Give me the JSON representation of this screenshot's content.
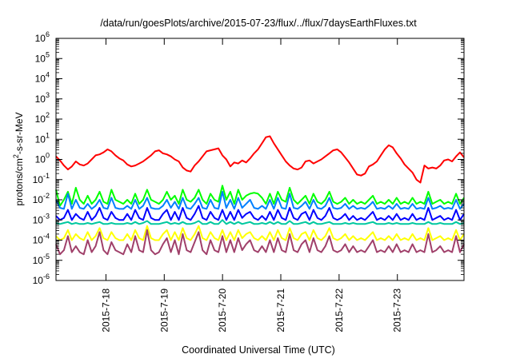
{
  "chart_data": {
    "type": "line",
    "title": "/data/run/goesPlots/archive/2015-07-23/flux/../flux/7daysEarthFluxes.txt",
    "xlabel": "Coordinated Universal Time (UTC)",
    "ylabel_main": "protons/cm",
    "ylabel_sup": "2",
    "ylabel_rest": "-s-sr-MeV",
    "yscale": "log",
    "ylim": [
      1e-06,
      1000000.0
    ],
    "xlim": [
      0,
      7.0
    ],
    "grid": false,
    "legend": "none",
    "x_ticks": [
      {
        "x": 0.857,
        "label": "2015-7-18"
      },
      {
        "x": 1.857,
        "label": "2015-7-19"
      },
      {
        "x": 2.857,
        "label": "2015-7-20"
      },
      {
        "x": 3.857,
        "label": "2015-7-21"
      },
      {
        "x": 4.857,
        "label": "2015-7-22"
      },
      {
        "x": 5.857,
        "label": "2015-7-23"
      }
    ],
    "y_ticks": [
      {
        "exp": "-6",
        "v": -6
      },
      {
        "exp": "-5",
        "v": -5
      },
      {
        "exp": "-4",
        "v": -4
      },
      {
        "exp": "-3",
        "v": -3
      },
      {
        "exp": "-2",
        "v": -2
      },
      {
        "exp": "-1",
        "v": -1
      },
      {
        "exp": "0",
        "v": 0
      },
      {
        "exp": "1",
        "v": 1
      },
      {
        "exp": "2",
        "v": 2
      },
      {
        "exp": "3",
        "v": 3
      },
      {
        "exp": "4",
        "v": 4
      },
      {
        "exp": "5",
        "v": 5
      },
      {
        "exp": "6",
        "v": 6
      }
    ],
    "series": [
      {
        "color": "#ff0000",
        "log10_values": [
          0.15,
          -0.05,
          -0.3,
          -0.5,
          -0.35,
          -0.1,
          -0.25,
          -0.3,
          -0.2,
          0.0,
          0.2,
          0.25,
          0.35,
          0.5,
          0.4,
          0.2,
          0.05,
          -0.05,
          -0.25,
          -0.35,
          -0.3,
          -0.2,
          -0.1,
          0.05,
          0.2,
          0.4,
          0.45,
          0.3,
          0.25,
          0.15,
          0.0,
          -0.1,
          -0.4,
          -0.55,
          -0.6,
          -0.3,
          -0.1,
          0.15,
          0.4,
          0.45,
          0.5,
          0.55,
          0.2,
          0.0,
          -0.35,
          -0.15,
          -0.2,
          -0.05,
          -0.15,
          0.05,
          0.3,
          0.5,
          0.8,
          1.1,
          1.15,
          0.8,
          0.5,
          0.2,
          -0.1,
          -0.3,
          -0.45,
          -0.5,
          -0.4,
          -0.1,
          -0.05,
          -0.2,
          -0.1,
          0.0,
          0.15,
          0.3,
          0.45,
          0.5,
          0.35,
          0.1,
          -0.15,
          -0.45,
          -0.75,
          -0.8,
          -0.7,
          -0.35,
          -0.25,
          -0.1,
          0.2,
          0.5,
          0.7,
          0.6,
          0.3,
          0.05,
          -0.25,
          -0.45,
          -0.65,
          -1.0,
          -1.15,
          -0.3,
          -0.45,
          -0.4,
          -0.45,
          -0.3,
          -0.05,
          0.0,
          -0.1,
          0.15,
          0.35,
          0.1
        ]
      },
      {
        "color": "#00ff00",
        "log10_values": [
          -1.5,
          -2.3,
          -2.0,
          -1.6,
          -2.2,
          -1.4,
          -2.0,
          -2.2,
          -1.8,
          -2.2,
          -2.0,
          -1.6,
          -2.1,
          -2.2,
          -1.5,
          -2.0,
          -2.1,
          -2.2,
          -2.0,
          -2.2,
          -1.7,
          -2.2,
          -2.0,
          -1.5,
          -2.0,
          -2.1,
          -2.2,
          -2.0,
          -1.6,
          -2.0,
          -1.8,
          -2.2,
          -1.5,
          -2.0,
          -2.1,
          -1.9,
          -1.5,
          -2.0,
          -2.2,
          -1.7,
          -2.0,
          -2.1,
          -1.3,
          -2.0,
          -1.6,
          -2.2,
          -1.5,
          -2.0,
          -1.8,
          -1.7,
          -1.65,
          -1.7,
          -1.9,
          -2.2,
          -1.7,
          -2.2,
          -1.6,
          -2.0,
          -2.1,
          -1.4,
          -2.0,
          -2.2,
          -2.0,
          -1.8,
          -2.2,
          -1.7,
          -2.1,
          -2.2,
          -2.0,
          -1.6,
          -2.1,
          -2.2,
          -2.1,
          -1.9,
          -2.2,
          -2.0,
          -2.2,
          -2.1,
          -2.2,
          -2.0,
          -1.8,
          -2.2,
          -2.1,
          -2.2,
          -2.0,
          -2.2,
          -1.9,
          -2.2,
          -2.1,
          -2.2,
          -1.9,
          -2.2,
          -2.1,
          -2.2,
          -1.6,
          -2.2,
          -2.1,
          -2.0,
          -2.2,
          -2.1,
          -2.2,
          -1.7,
          -2.2,
          -1.9
        ]
      },
      {
        "color": "#0080ff",
        "log10_values": [
          -2.0,
          -2.4,
          -2.45,
          -1.7,
          -2.45,
          -2.0,
          -2.4,
          -2.45,
          -2.2,
          -2.45,
          -2.3,
          -2.0,
          -2.4,
          -2.45,
          -1.9,
          -2.4,
          -2.45,
          -2.45,
          -2.3,
          -2.45,
          -2.0,
          -2.45,
          -2.3,
          -1.9,
          -2.4,
          -2.45,
          -2.45,
          -2.3,
          -2.0,
          -2.4,
          -2.1,
          -2.45,
          -1.9,
          -2.4,
          -2.45,
          -2.2,
          -1.9,
          -2.4,
          -2.45,
          -2.0,
          -2.4,
          -2.45,
          -1.6,
          -2.4,
          -2.0,
          -2.45,
          -1.9,
          -2.4,
          -2.2,
          -2.0,
          -2.4,
          -2.45,
          -2.3,
          -2.45,
          -2.0,
          -2.45,
          -1.9,
          -2.4,
          -2.45,
          -1.7,
          -2.4,
          -2.45,
          -2.3,
          -2.1,
          -2.45,
          -2.0,
          -2.4,
          -2.45,
          -2.3,
          -1.9,
          -2.4,
          -2.45,
          -2.4,
          -2.2,
          -2.45,
          -2.3,
          -2.45,
          -2.4,
          -2.45,
          -2.3,
          -2.1,
          -2.45,
          -2.4,
          -2.45,
          -2.3,
          -2.45,
          -2.2,
          -2.45,
          -2.4,
          -2.45,
          -2.2,
          -2.45,
          -2.4,
          -2.45,
          -1.9,
          -2.45,
          -2.4,
          -2.3,
          -2.45,
          -2.4,
          -2.45,
          -2.0,
          -2.45,
          -2.2
        ]
      },
      {
        "color": "#0000ff",
        "log10_values": [
          -2.8,
          -3.0,
          -2.9,
          -2.5,
          -3.0,
          -2.7,
          -2.9,
          -3.0,
          -2.6,
          -3.0,
          -2.8,
          -2.4,
          -2.9,
          -3.0,
          -2.6,
          -2.9,
          -3.0,
          -3.0,
          -2.7,
          -3.0,
          -2.5,
          -2.9,
          -3.0,
          -2.4,
          -2.9,
          -3.0,
          -3.0,
          -2.7,
          -2.5,
          -3.0,
          -2.6,
          -3.0,
          -2.4,
          -2.9,
          -3.0,
          -2.7,
          -2.3,
          -2.9,
          -3.0,
          -2.6,
          -2.9,
          -3.0,
          -2.5,
          -3.0,
          -2.6,
          -3.0,
          -2.5,
          -2.9,
          -2.7,
          -2.6,
          -2.9,
          -3.0,
          -2.8,
          -3.0,
          -2.6,
          -3.0,
          -2.5,
          -2.9,
          -3.0,
          -2.4,
          -2.9,
          -3.0,
          -2.7,
          -2.6,
          -3.0,
          -2.5,
          -2.9,
          -3.0,
          -2.8,
          -2.4,
          -2.9,
          -3.0,
          -2.9,
          -2.7,
          -3.0,
          -2.8,
          -3.0,
          -2.9,
          -3.0,
          -2.8,
          -2.6,
          -3.0,
          -2.9,
          -3.0,
          -2.8,
          -3.0,
          -2.7,
          -3.0,
          -2.9,
          -3.0,
          -2.7,
          -3.0,
          -2.9,
          -3.0,
          -2.4,
          -3.0,
          -2.9,
          -2.8,
          -3.0,
          -2.9,
          -3.0,
          -2.5,
          -3.0,
          -2.7
        ]
      },
      {
        "color": "#00c8a0",
        "log10_values": [
          -3.15,
          -3.2,
          -3.15,
          -3.1,
          -3.2,
          -3.15,
          -3.2,
          -3.2,
          -3.15,
          -3.2,
          -3.15,
          -3.1,
          -3.2,
          -3.2,
          -3.15,
          -3.2,
          -3.2,
          -3.2,
          -3.15,
          -3.2,
          -3.1,
          -3.2,
          -3.15,
          -3.05,
          -3.2,
          -3.2,
          -3.2,
          -3.15,
          -3.1,
          -3.2,
          -3.15,
          -3.2,
          -3.1,
          -3.2,
          -3.2,
          -3.15,
          -3.05,
          -3.2,
          -3.2,
          -3.1,
          -3.2,
          -3.2,
          -3.0,
          -3.2,
          -3.1,
          -3.2,
          -3.1,
          -3.2,
          -3.15,
          -3.1,
          -3.2,
          -3.2,
          -3.15,
          -3.2,
          -3.1,
          -3.2,
          -3.1,
          -3.2,
          -3.2,
          -3.05,
          -3.2,
          -3.2,
          -3.15,
          -3.1,
          -3.2,
          -3.1,
          -3.2,
          -3.2,
          -3.15,
          -3.1,
          -3.2,
          -3.2,
          -3.2,
          -3.15,
          -3.2,
          -3.15,
          -3.2,
          -3.2,
          -3.2,
          -3.15,
          -3.1,
          -3.2,
          -3.2,
          -3.2,
          -3.15,
          -3.2,
          -3.15,
          -3.2,
          -3.2,
          -3.2,
          -3.15,
          -3.2,
          -3.2,
          -3.2,
          -3.1,
          -3.2,
          -3.2,
          -3.15,
          -3.2,
          -3.2,
          -3.2,
          -3.1,
          -3.2,
          -3.15
        ]
      },
      {
        "color": "#ffff00",
        "log10_values": [
          -3.8,
          -4.0,
          -3.9,
          -3.5,
          -4.0,
          -3.7,
          -3.9,
          -4.0,
          -3.6,
          -4.0,
          -3.8,
          -3.4,
          -3.9,
          -4.0,
          -3.6,
          -3.9,
          -4.0,
          -4.0,
          -3.7,
          -4.0,
          -3.5,
          -3.9,
          -4.0,
          -3.3,
          -3.9,
          -4.0,
          -4.0,
          -3.7,
          -3.5,
          -4.0,
          -3.6,
          -4.0,
          -3.4,
          -3.9,
          -4.0,
          -3.7,
          -3.3,
          -3.9,
          -4.0,
          -3.6,
          -3.9,
          -4.0,
          -3.5,
          -4.0,
          -3.6,
          -4.0,
          -3.5,
          -3.9,
          -3.7,
          -3.6,
          -3.9,
          -4.0,
          -3.8,
          -4.0,
          -3.6,
          -4.0,
          -3.5,
          -3.9,
          -4.0,
          -3.4,
          -3.9,
          -4.0,
          -3.7,
          -3.6,
          -4.0,
          -3.5,
          -3.9,
          -4.0,
          -3.8,
          -3.4,
          -3.9,
          -4.0,
          -3.9,
          -3.7,
          -4.0,
          -3.8,
          -4.0,
          -3.9,
          -4.0,
          -3.8,
          -3.6,
          -4.0,
          -3.9,
          -4.0,
          -3.8,
          -4.0,
          -3.7,
          -4.0,
          -3.9,
          -4.0,
          -3.7,
          -4.0,
          -3.9,
          -4.0,
          -3.4,
          -4.0,
          -3.9,
          -3.8,
          -4.0,
          -3.9,
          -4.0,
          -3.5,
          -4.0,
          -3.7
        ]
      },
      {
        "color": "#a0406a",
        "log10_values": [
          -4.2,
          -4.7,
          -4.5,
          -3.8,
          -4.6,
          -4.3,
          -4.6,
          -4.7,
          -4.0,
          -4.6,
          -4.3,
          -3.6,
          -4.5,
          -4.7,
          -4.1,
          -4.5,
          -4.6,
          -4.7,
          -4.2,
          -4.6,
          -3.8,
          -4.5,
          -4.6,
          -3.5,
          -4.5,
          -4.7,
          -4.6,
          -4.2,
          -3.9,
          -4.6,
          -4.0,
          -4.7,
          -3.7,
          -4.5,
          -4.6,
          -4.1,
          -3.6,
          -4.5,
          -4.7,
          -4.0,
          -4.5,
          -4.6,
          -3.8,
          -4.6,
          -4.0,
          -4.6,
          -3.9,
          -4.5,
          -4.2,
          -4.0,
          -4.5,
          -4.6,
          -4.3,
          -4.6,
          -4.0,
          -4.6,
          -3.9,
          -4.5,
          -4.6,
          -3.7,
          -4.5,
          -4.6,
          -4.2,
          -4.0,
          -4.6,
          -3.9,
          -4.5,
          -4.6,
          -4.3,
          -3.8,
          -4.5,
          -4.6,
          -4.5,
          -4.2,
          -4.6,
          -4.3,
          -4.6,
          -4.5,
          -4.6,
          -4.3,
          -4.0,
          -4.6,
          -4.5,
          -4.6,
          -4.3,
          -4.6,
          -4.2,
          -4.6,
          -4.5,
          -4.6,
          -4.2,
          -4.6,
          -4.5,
          -4.6,
          -3.7,
          -4.6,
          -4.5,
          -4.3,
          -4.6,
          -4.5,
          -4.6,
          -3.8,
          -4.6,
          -4.2
        ]
      }
    ]
  }
}
